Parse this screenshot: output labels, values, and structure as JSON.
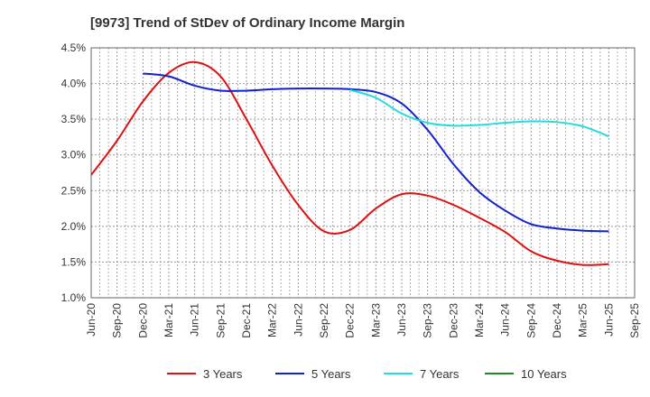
{
  "chart_data": {
    "type": "line",
    "title": "[9973]  Trend of StDev of Ordinary Income Margin",
    "xlabel": "",
    "ylabel": "",
    "ylim": [
      1.0,
      4.5
    ],
    "yticks": [
      "1.0%",
      "1.5%",
      "2.0%",
      "2.5%",
      "3.0%",
      "3.5%",
      "4.0%",
      "4.5%"
    ],
    "categories": [
      "Jun-20",
      "Sep-20",
      "Dec-20",
      "Mar-21",
      "Jun-21",
      "Sep-21",
      "Dec-21",
      "Mar-22",
      "Jun-22",
      "Sep-22",
      "Dec-22",
      "Mar-23",
      "Jun-23",
      "Sep-23",
      "Dec-23",
      "Mar-24",
      "Jun-24",
      "Sep-24",
      "Dec-24",
      "Mar-25",
      "Jun-25",
      "Sep-25"
    ],
    "grid": true,
    "legend_position": "bottom",
    "series": [
      {
        "name": "3 Years",
        "color": "#dd1111",
        "values": [
          2.72,
          3.2,
          3.75,
          4.15,
          4.3,
          4.1,
          3.5,
          2.85,
          2.3,
          1.93,
          1.95,
          2.25,
          2.45,
          2.43,
          2.3,
          2.12,
          1.92,
          1.65,
          1.52,
          1.46,
          1.47,
          null
        ]
      },
      {
        "name": "5 Years",
        "color": "#1122cc",
        "values": [
          null,
          null,
          4.14,
          4.1,
          3.97,
          3.9,
          3.9,
          3.92,
          3.93,
          3.93,
          3.92,
          3.88,
          3.72,
          3.35,
          2.87,
          2.48,
          2.22,
          2.03,
          1.97,
          1.94,
          1.93,
          null
        ]
      },
      {
        "name": "7 Years",
        "color": "#22dddd",
        "values": [
          null,
          null,
          null,
          null,
          null,
          null,
          null,
          null,
          null,
          null,
          3.91,
          3.8,
          3.58,
          3.45,
          3.41,
          3.42,
          3.45,
          3.47,
          3.46,
          3.4,
          3.26,
          null
        ]
      },
      {
        "name": "10 Years",
        "color": "#228822",
        "values": [
          null,
          null,
          null,
          null,
          null,
          null,
          null,
          null,
          null,
          null,
          null,
          null,
          null,
          null,
          null,
          null,
          null,
          null,
          null,
          null,
          null,
          null
        ]
      }
    ]
  }
}
